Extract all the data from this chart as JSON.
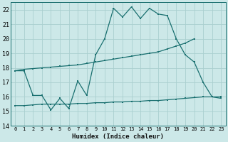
{
  "xlabel": "Humidex (Indice chaleur)",
  "x_values": [
    0,
    1,
    2,
    3,
    4,
    5,
    6,
    7,
    8,
    9,
    10,
    11,
    12,
    13,
    14,
    15,
    16,
    17,
    18,
    19,
    20,
    21,
    22,
    23
  ],
  "line1": [
    17.8,
    17.8,
    16.1,
    16.1,
    15.1,
    15.9,
    15.2,
    17.1,
    16.1,
    18.9,
    20.0,
    22.1,
    21.5,
    22.2,
    21.4,
    22.1,
    21.7,
    21.6,
    20.0,
    18.9,
    18.4,
    17.0,
    16.0,
    15.9
  ],
  "line2_x": [
    0,
    1,
    2,
    3,
    4,
    5,
    6,
    7,
    8,
    9,
    10,
    11,
    12,
    13,
    14,
    15,
    16,
    17,
    18,
    19,
    20
  ],
  "line2_y": [
    17.8,
    17.9,
    17.95,
    18.0,
    18.05,
    18.1,
    18.15,
    18.2,
    18.3,
    18.4,
    18.5,
    18.6,
    18.7,
    18.8,
    18.9,
    19.0,
    19.1,
    19.3,
    19.5,
    19.7,
    20.0
  ],
  "line3_x": [
    0,
    1,
    2,
    3,
    4,
    5,
    6,
    7,
    8,
    9,
    10,
    11,
    12,
    13,
    14,
    15,
    16,
    17,
    18,
    19,
    20,
    21,
    22,
    23
  ],
  "line3_y": [
    15.4,
    15.4,
    15.45,
    15.5,
    15.5,
    15.5,
    15.5,
    15.55,
    15.55,
    15.6,
    15.6,
    15.65,
    15.65,
    15.7,
    15.7,
    15.75,
    15.75,
    15.8,
    15.85,
    15.9,
    15.95,
    16.0,
    16.0,
    16.0
  ],
  "bg_color": "#cce8e8",
  "line_color": "#1a7070",
  "grid_color": "#aacfcf",
  "ylim": [
    14,
    22.5
  ],
  "xlim": [
    -0.5,
    23.5
  ],
  "yticks": [
    14,
    15,
    16,
    17,
    18,
    19,
    20,
    21,
    22
  ],
  "xticks": [
    0,
    1,
    2,
    3,
    4,
    5,
    6,
    7,
    8,
    9,
    10,
    11,
    12,
    13,
    14,
    15,
    16,
    17,
    18,
    19,
    20,
    21,
    22,
    23
  ]
}
